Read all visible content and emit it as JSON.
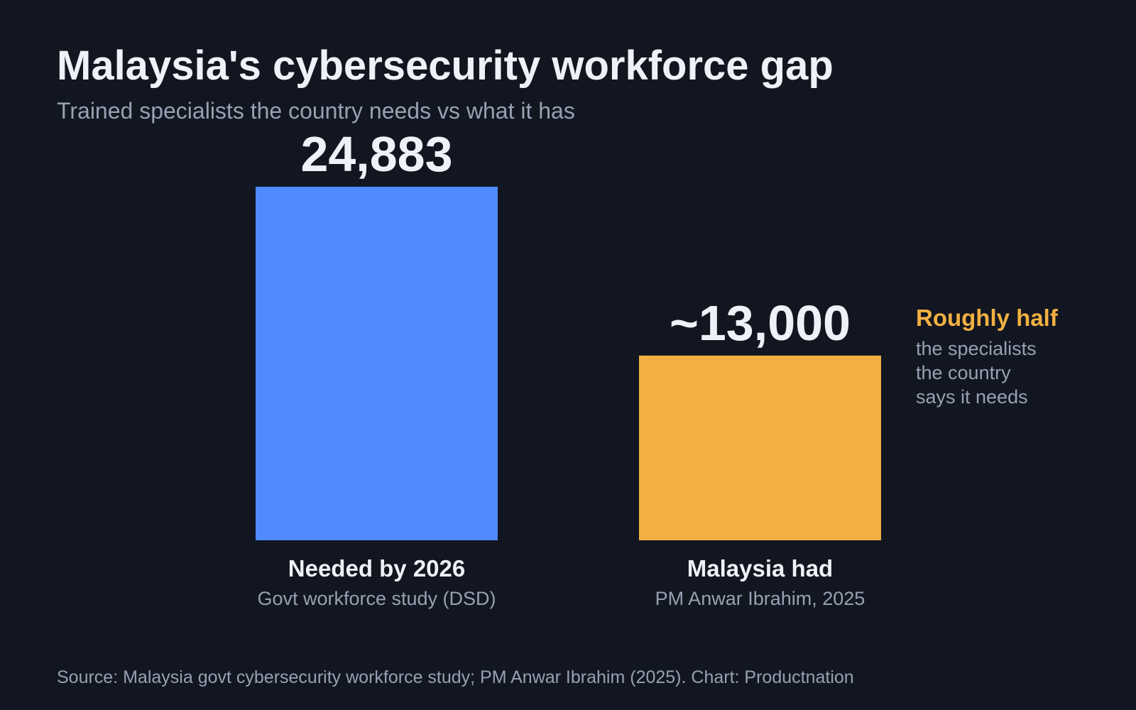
{
  "title": "Malaysia's cybersecurity workforce gap",
  "subtitle": "Trained specialists the country needs vs what it has",
  "annotation": {
    "headline": "Roughly half",
    "body": "the specialists\nthe country\nsays it needs"
  },
  "source": "Source: Malaysia govt cybersecurity workforce study; PM Anwar Ibrahim (2025).  Chart: Productnation",
  "colors": {
    "background": "#121620",
    "needed": "#4f8bff",
    "had": "#f2b042",
    "text": "#eef1f7",
    "muted": "#98a0b3"
  },
  "chart_data": {
    "type": "bar",
    "title": "Malaysia's cybersecurity workforce gap",
    "subtitle": "Trained specialists the country needs vs what it has",
    "categories": [
      "Needed by 2026",
      "Malaysia had"
    ],
    "category_sublabels": [
      "Govt workforce study (DSD)",
      "PM Anwar Ibrahim, 2025"
    ],
    "values": [
      24883,
      13000
    ],
    "value_labels": [
      "24,883",
      "~13,000"
    ],
    "bar_colors": [
      "#4f8bff",
      "#f2b042"
    ],
    "xlabel": "",
    "ylabel": "",
    "ylim": [
      0,
      24883
    ],
    "grid": false,
    "legend": "none"
  }
}
